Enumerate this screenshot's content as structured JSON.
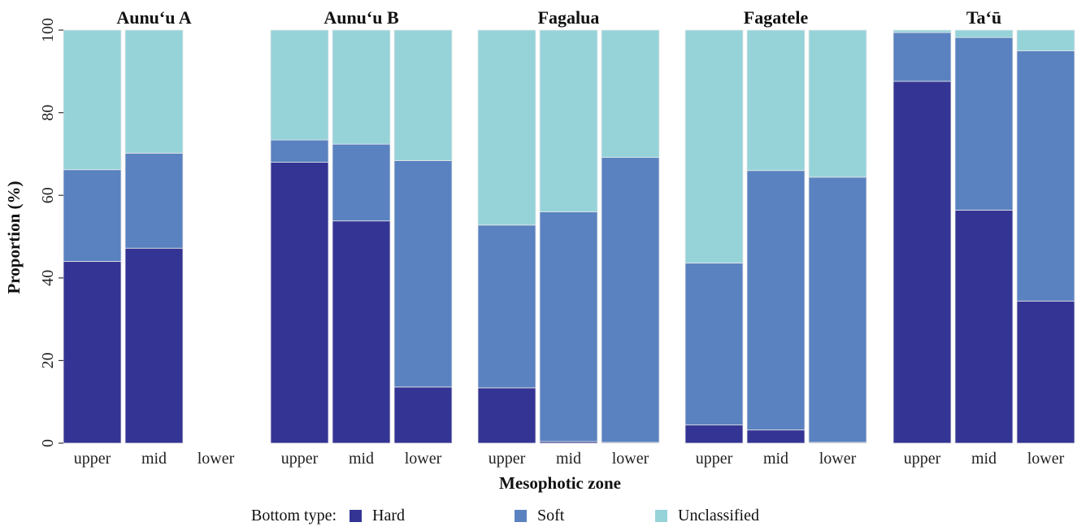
{
  "chart_data": {
    "type": "bar",
    "stacked": true,
    "xlabel": "Mesophotic zone",
    "ylabel": "Proportion (%)",
    "ylim": [
      0,
      100
    ],
    "yticks": [
      0,
      20,
      40,
      60,
      80,
      100
    ],
    "zones": [
      "upper",
      "mid",
      "lower"
    ],
    "stack_order": [
      "Hard",
      "Soft",
      "Unclassified"
    ],
    "colors": {
      "Hard": "#343494",
      "Soft": "#5a82c0",
      "Unclassified": "#95d3d9"
    },
    "grid": false,
    "legend": {
      "title": "Bottom type:",
      "placement": "bottom",
      "items": [
        "Hard",
        "Soft",
        "Unclassified"
      ]
    },
    "panels": [
      {
        "title": "Aunu‘u A",
        "bars": [
          {
            "zone": "upper",
            "Hard": 44,
            "Soft": 22.2,
            "Unclassified": 33.8
          },
          {
            "zone": "mid",
            "Hard": 47.2,
            "Soft": 23,
            "Unclassified": 29.8
          },
          {
            "zone": "lower",
            "Hard": null,
            "Soft": null,
            "Unclassified": null
          }
        ]
      },
      {
        "title": "Aunu‘u B",
        "bars": [
          {
            "zone": "upper",
            "Hard": 68,
            "Soft": 5.4,
            "Unclassified": 26.6
          },
          {
            "zone": "mid",
            "Hard": 53.8,
            "Soft": 18.6,
            "Unclassified": 27.6
          },
          {
            "zone": "lower",
            "Hard": 13.6,
            "Soft": 54.8,
            "Unclassified": 31.6
          }
        ]
      },
      {
        "title": "Fagalua",
        "bars": [
          {
            "zone": "upper",
            "Hard": 13.4,
            "Soft": 39.4,
            "Unclassified": 47.2
          },
          {
            "zone": "mid",
            "Hard": 0.4,
            "Soft": 55.6,
            "Unclassified": 44
          },
          {
            "zone": "lower",
            "Hard": 0.2,
            "Soft": 69,
            "Unclassified": 30.8
          }
        ]
      },
      {
        "title": "Fagatele",
        "bars": [
          {
            "zone": "upper",
            "Hard": 4.4,
            "Soft": 39.2,
            "Unclassified": 56.4
          },
          {
            "zone": "mid",
            "Hard": 3.2,
            "Soft": 62.8,
            "Unclassified": 34
          },
          {
            "zone": "lower",
            "Hard": 0.2,
            "Soft": 64.2,
            "Unclassified": 35.6
          }
        ]
      },
      {
        "title": "Ta‘ū",
        "bars": [
          {
            "zone": "upper",
            "Hard": 87.6,
            "Soft": 11.8,
            "Unclassified": 0.6
          },
          {
            "zone": "mid",
            "Hard": 56.4,
            "Soft": 41.8,
            "Unclassified": 1.8
          },
          {
            "zone": "lower",
            "Hard": 34.4,
            "Soft": 60.6,
            "Unclassified": 5
          }
        ]
      }
    ]
  }
}
